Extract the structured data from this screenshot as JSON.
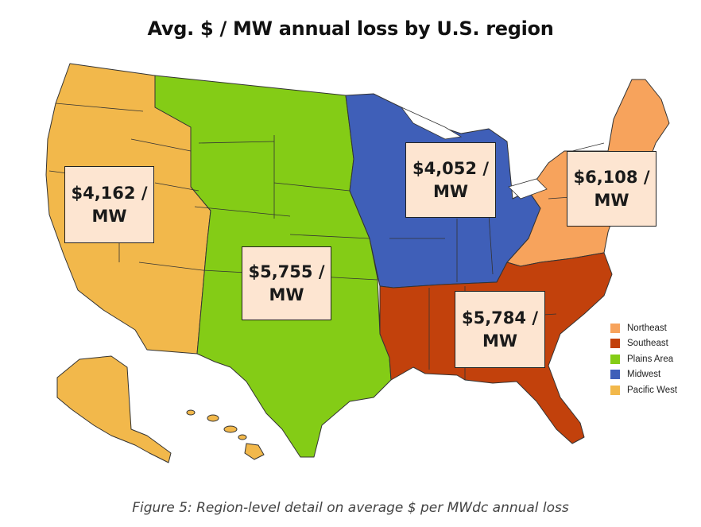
{
  "title": "Avg. $ / MW annual loss by U.S. region",
  "caption": "Figure 5: Region-level detail on average $ per MWdc annual loss",
  "regions": [
    {
      "id": "pacific-west",
      "name": "Pacific West",
      "color": "#f2b84b",
      "value": "$4,162 / MW"
    },
    {
      "id": "plains",
      "name": "Plains Area",
      "color": "#84cc16",
      "value": "$5,755 / MW"
    },
    {
      "id": "midwest",
      "name": "Midwest",
      "color": "#3f5fb8",
      "value": "$4,052 / MW"
    },
    {
      "id": "southeast",
      "name": "Southeast",
      "color": "#c2410c",
      "value": "$5,784 / MW"
    },
    {
      "id": "northeast",
      "name": "Northeast",
      "color": "#f7a35c",
      "value": "$6,108 / MW"
    }
  ],
  "legend": [
    {
      "label": "Northeast",
      "color": "#f7a35c"
    },
    {
      "label": "Southeast",
      "color": "#c2410c"
    },
    {
      "label": "Plains Area",
      "color": "#84cc16"
    },
    {
      "label": "Midwest",
      "color": "#3f5fb8"
    },
    {
      "label": "Pacific West",
      "color": "#f2b84b"
    }
  ]
}
